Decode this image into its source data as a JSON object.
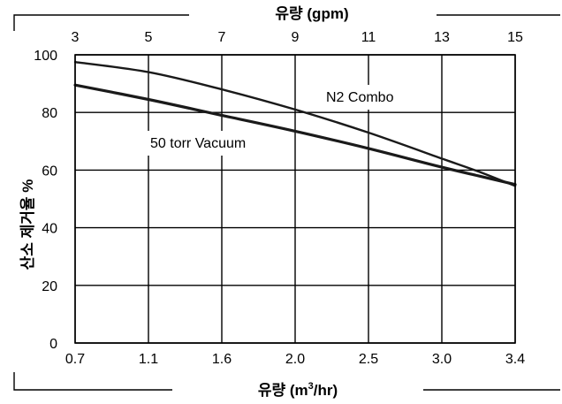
{
  "chart_data": {
    "type": "line",
    "top_axis": {
      "label": "유량 (gpm)",
      "ticks": [
        "3",
        "5",
        "7",
        "9",
        "11",
        "13",
        "15"
      ]
    },
    "bottom_axis": {
      "label": "유량 (m",
      "label_superscript": "3",
      "label_suffix": "/hr)",
      "ticks": [
        "0.7",
        "1.1",
        "1.6",
        "2.0",
        "2.5",
        "3.0",
        "3.4"
      ]
    },
    "y_axis": {
      "label": "산소 제거율 %",
      "ticks": [
        "0",
        "20",
        "40",
        "60",
        "80",
        "100"
      ],
      "ylim": [
        0,
        100
      ]
    },
    "grid": true,
    "x_domain": [
      0,
      6
    ],
    "series": [
      {
        "name": "N2 Combo",
        "x": [
          0,
          1,
          2,
          3,
          4,
          5,
          5.5,
          6
        ],
        "y": [
          97.5,
          94,
          88,
          81,
          73,
          64,
          59.5,
          54.5
        ]
      },
      {
        "name": "50 torr Vacuum",
        "x": [
          0,
          1,
          2,
          3,
          4,
          5,
          5.5,
          6
        ],
        "y": [
          89.5,
          84.5,
          79,
          73.5,
          67.5,
          61,
          58,
          55
        ]
      }
    ]
  }
}
